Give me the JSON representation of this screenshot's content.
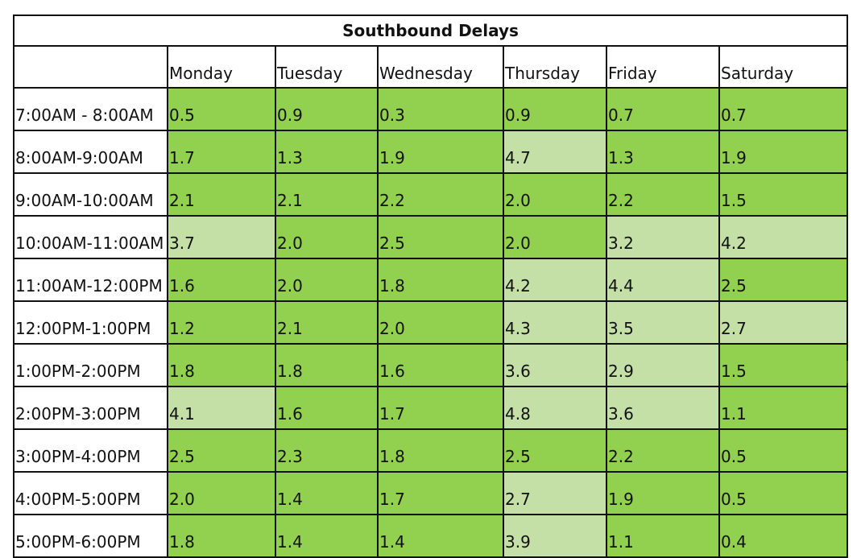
{
  "table": {
    "title": "Southbound Delays",
    "corner": "",
    "days": [
      "Monday",
      "Tuesday",
      "Wednesday",
      "Thursday",
      "Friday",
      "Saturday"
    ],
    "rows": [
      {
        "time": "7:00AM - 8:00AM",
        "values": [
          "0.5",
          "0.9",
          "0.3",
          "0.9",
          "0.7",
          "0.7"
        ]
      },
      {
        "time": "8:00AM-9:00AM",
        "values": [
          "1.7",
          "1.3",
          "1.9",
          "4.7",
          "1.3",
          "1.9"
        ]
      },
      {
        "time": "9:00AM-10:00AM",
        "values": [
          "2.1",
          "2.1",
          "2.2",
          "2.0",
          "2.2",
          "1.5"
        ]
      },
      {
        "time": "10:00AM-11:00AM",
        "values": [
          "3.7",
          "2.0",
          "2.5",
          "2.0",
          "3.2",
          "4.2"
        ]
      },
      {
        "time": "11:00AM-12:00PM",
        "values": [
          "1.6",
          "2.0",
          "1.8",
          "4.2",
          "4.4",
          "2.5"
        ]
      },
      {
        "time": "12:00PM-1:00PM",
        "values": [
          "1.2",
          "2.1",
          "2.0",
          "4.3",
          "3.5",
          "2.7"
        ]
      },
      {
        "time": "1:00PM-2:00PM",
        "values": [
          "1.8",
          "1.8",
          "1.6",
          "3.6",
          "2.9",
          "1.5"
        ]
      },
      {
        "time": "2:00PM-3:00PM",
        "values": [
          "4.1",
          "1.6",
          "1.7",
          "4.8",
          "3.6",
          "1.1"
        ]
      },
      {
        "time": "3:00PM-4:00PM",
        "values": [
          "2.5",
          "2.3",
          "1.8",
          "2.5",
          "2.2",
          "0.5"
        ]
      },
      {
        "time": "4:00PM-5:00PM",
        "values": [
          "2.0",
          "1.4",
          "1.7",
          "2.7",
          "1.9",
          "0.5"
        ]
      },
      {
        "time": "5:00PM-6:00PM",
        "values": [
          "1.8",
          "1.4",
          "1.4",
          "3.9",
          "1.1",
          "0.4"
        ]
      }
    ]
  },
  "colors": {
    "low_delay_fill": "#92d050",
    "high_delay_fill": "#c4e0a6",
    "border": "#111111"
  }
}
